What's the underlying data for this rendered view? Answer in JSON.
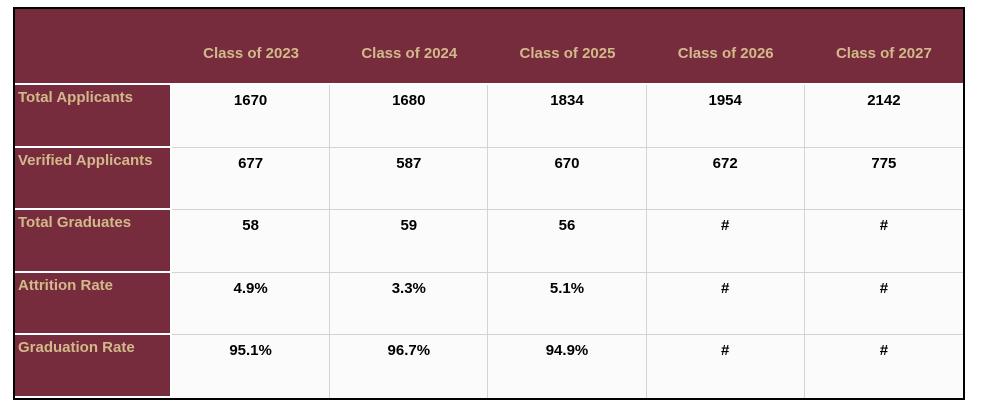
{
  "colors": {
    "garnet": "#772C3E",
    "gold": "#D2B98A",
    "cell_bg": "#FBFBFB",
    "grid_line": "#D3D3D3",
    "outer_border": "#000000",
    "value_text": "#000000"
  },
  "chart_data": {
    "type": "table",
    "columns": [
      "Class of 2023",
      "Class of 2024",
      "Class of 2025",
      "Class of 2026",
      "Class of 2027"
    ],
    "rows": [
      {
        "label": "Total Applicants",
        "values": [
          "1670",
          "1680",
          "1834",
          "1954",
          "2142"
        ]
      },
      {
        "label": "Verified Applicants",
        "values": [
          "677",
          "587",
          "670",
          "672",
          "775"
        ]
      },
      {
        "label": "Total Graduates",
        "values": [
          "58",
          "59",
          "56",
          "#",
          "#"
        ]
      },
      {
        "label": "Attrition Rate",
        "values": [
          "4.9%",
          "3.3%",
          "5.1%",
          "#",
          "#"
        ]
      },
      {
        "label": "Graduation Rate",
        "values": [
          "95.1%",
          "96.7%",
          "94.9%",
          "#",
          "#"
        ]
      }
    ],
    "layout_hints": {
      "header_position": "top",
      "row_labels_position": "left",
      "grid": "on",
      "value_alignment": "top-center"
    }
  }
}
